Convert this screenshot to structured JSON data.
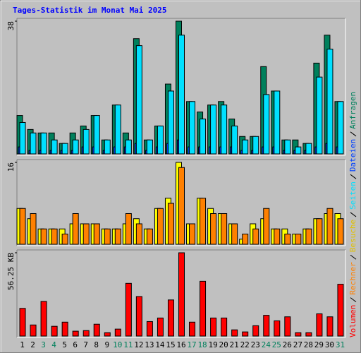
{
  "title": "Tages-Statistik im Monat Mai 2025",
  "chart_data": [
    {
      "type": "bar",
      "ylim": [
        0,
        38
      ],
      "yticks": [
        38
      ],
      "series": [
        {
          "name": "Anfragen",
          "color": "#00805c",
          "values": [
            11,
            7,
            6,
            6,
            3,
            6,
            8,
            11,
            4,
            14,
            6,
            33,
            4,
            8,
            20,
            38,
            15,
            12,
            14,
            15,
            10,
            5,
            5,
            25,
            18,
            4,
            4,
            3,
            26,
            34,
            15
          ]
        },
        {
          "name": "Dateien",
          "color": "#0040ff",
          "values": [
            2,
            1,
            1,
            1,
            1,
            1,
            2,
            2,
            1,
            2,
            2,
            3,
            1,
            2,
            3,
            4,
            2,
            2,
            2,
            2,
            2,
            1,
            1,
            2,
            2,
            1,
            1,
            1,
            2,
            3,
            2
          ]
        },
        {
          "name": "Seiten",
          "color": "#00e0ff",
          "values": [
            9,
            6,
            6,
            4,
            3,
            4,
            7,
            11,
            4,
            14,
            4,
            31,
            4,
            8,
            18,
            34,
            15,
            10,
            14,
            14,
            8,
            4,
            5,
            17,
            18,
            4,
            2,
            3,
            22,
            30,
            15
          ]
        }
      ]
    },
    {
      "type": "bar",
      "ylim": [
        0,
        16
      ],
      "yticks": [
        16
      ],
      "series": [
        {
          "name": "Besuche",
          "color": "#ffff00",
          "values": [
            7,
            5,
            3,
            3,
            3,
            4,
            4,
            4,
            3,
            3,
            4,
            5,
            3,
            7,
            9,
            16,
            4,
            9,
            7,
            6,
            4,
            1,
            4,
            5,
            3,
            3,
            2,
            3,
            5,
            6,
            6
          ]
        },
        {
          "name": "Rechner",
          "color": "#ff8000",
          "values": [
            7,
            6,
            3,
            3,
            2,
            6,
            4,
            4,
            3,
            3,
            6,
            4,
            3,
            7,
            8,
            15,
            4,
            9,
            6,
            6,
            4,
            2,
            3,
            7,
            3,
            2,
            2,
            3,
            5,
            7,
            5
          ]
        }
      ]
    },
    {
      "type": "bar",
      "ylim": [
        0,
        56.25
      ],
      "yticks": [
        {
          "value": 56.25,
          "label": "56.25 KB"
        }
      ],
      "categories": [
        "1",
        "2",
        "3",
        "4",
        "5",
        "6",
        "7",
        "8",
        "9",
        "10",
        "11",
        "12",
        "13",
        "14",
        "15",
        "16",
        "17",
        "18",
        "19",
        "20",
        "21",
        "22",
        "23",
        "24",
        "25",
        "26",
        "27",
        "28",
        "29",
        "30",
        "31"
      ],
      "category_colors": [
        "#000000",
        "#000000",
        "#00805c",
        "#00805c",
        "#000000",
        "#000000",
        "#000000",
        "#000000",
        "#000000",
        "#00805c",
        "#00805c",
        "#000000",
        "#000000",
        "#000000",
        "#000000",
        "#000000",
        "#00805c",
        "#00805c",
        "#000000",
        "#000000",
        "#000000",
        "#000000",
        "#000000",
        "#00805c",
        "#00805c",
        "#000000",
        "#000000",
        "#000000",
        "#000000",
        "#000000",
        "#00805c"
      ],
      "series": [
        {
          "name": "Volumen",
          "color": "#ff0000",
          "values": [
            18.7,
            7.5,
            23.4,
            6.6,
            9.4,
            3.3,
            3.7,
            8,
            2.3,
            4.7,
            35.6,
            26.7,
            9.8,
            12.2,
            24.4,
            56.25,
            9.4,
            37,
            12.2,
            12.2,
            4.2,
            2.8,
            7,
            14,
            10.3,
            13,
            2.3,
            2.3,
            15,
            13,
            35
          ]
        }
      ]
    }
  ]
}
